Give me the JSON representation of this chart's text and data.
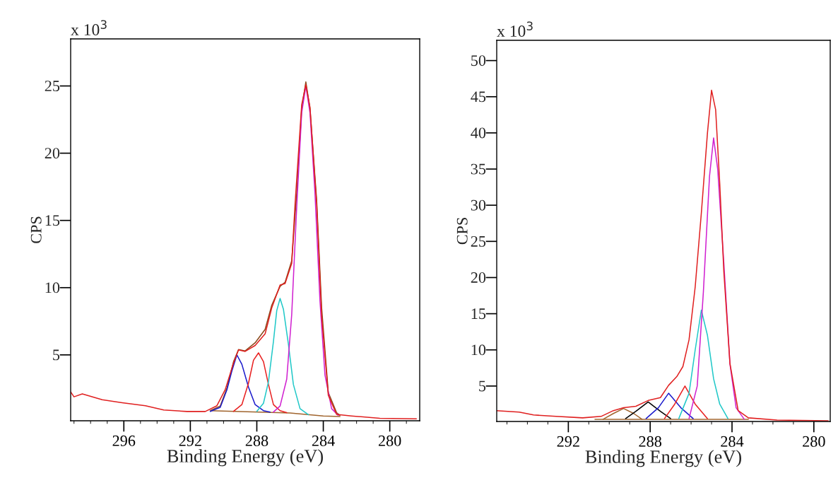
{
  "chart_data": [
    {
      "type": "line",
      "xlabel": "Binding Energy (eV)",
      "ylabel": "CPS",
      "annotations": [
        "x 10$^{3}$"
      ],
      "xlim": [
        299.2,
        278.2
      ],
      "xticks": [
        296,
        292,
        288,
        284,
        280
      ],
      "ylim": [
        0.1,
        28.5
      ],
      "yticks": [
        5,
        10,
        15,
        20,
        25
      ],
      "grid": false,
      "legend": false,
      "series": [
        {
          "color": "#8b4a1c",
          "x": [
            290.8,
            290.2,
            289.8,
            289.4,
            289.1,
            288.7,
            288.1,
            287.5,
            287.1,
            286.6,
            286.3,
            285.9,
            285.6,
            285.3,
            285.05,
            284.8,
            284.4,
            284.1,
            283.7,
            283.2,
            283.0
          ],
          "values": [
            0.85,
            1.2,
            2.5,
            4.5,
            5.4,
            5.3,
            5.9,
            6.9,
            8.7,
            10.1,
            10.4,
            12,
            17,
            23.3,
            25.3,
            23.3,
            16.5,
            8.5,
            2.2,
            0.7,
            0.5
          ]
        },
        {
          "color": "#a0642d",
          "x": [
            290.8,
            286.0,
            284.0,
            283.0
          ],
          "values": [
            0.85,
            0.68,
            0.46,
            0.41
          ]
        },
        {
          "color": "#1a1acc",
          "x": [
            290.8,
            290.2,
            289.8,
            289.5,
            289.2,
            288.9,
            288.5,
            288.1,
            287.6,
            287.2
          ],
          "values": [
            0.8,
            1.1,
            2.4,
            3.8,
            5.0,
            4.3,
            2.6,
            1.3,
            0.85,
            0.75
          ]
        },
        {
          "color": "#e82020",
          "x": [
            289.4,
            288.9,
            288.5,
            288.2,
            287.9,
            287.6,
            287.3,
            287.0,
            286.6,
            286.2
          ],
          "values": [
            0.8,
            1.3,
            2.9,
            4.6,
            5.15,
            4.5,
            2.8,
            1.3,
            0.85,
            0.7
          ]
        },
        {
          "color": "#20c8c8",
          "x": [
            288.0,
            287.6,
            287.3,
            287.0,
            286.8,
            286.6,
            286.4,
            286.1,
            285.8,
            285.4,
            284.9
          ],
          "values": [
            0.8,
            1.4,
            3.0,
            6.0,
            8.3,
            9.2,
            8.4,
            5.8,
            2.8,
            1.0,
            0.55
          ]
        },
        {
          "color": "#d020d0",
          "x": [
            287.0,
            286.6,
            286.2,
            285.9,
            285.6,
            285.3,
            285.05,
            284.8,
            284.5,
            284.2,
            283.9,
            283.5,
            283.1
          ],
          "values": [
            0.75,
            1.2,
            3.2,
            8,
            16,
            23,
            25.0,
            23.0,
            17,
            9,
            3.5,
            1.0,
            0.5
          ]
        },
        {
          "color": "#e02020",
          "x": [
            299.2,
            299.0,
            298.5,
            297.3,
            296.1,
            294.7,
            293.6,
            292.2,
            291.1,
            290.4,
            289.9,
            289.4,
            289.1,
            288.7,
            288.1,
            287.5,
            287.1,
            286.6,
            286.3,
            285.9,
            285.7,
            285.3,
            285.05,
            284.8,
            284.4,
            284.1,
            283.7,
            283.2,
            282.3,
            280.6,
            278.4
          ],
          "values": [
            2.25,
            1.88,
            2.1,
            1.66,
            1.44,
            1.22,
            0.9,
            0.79,
            0.79,
            1.22,
            2.42,
            4.4,
            5.37,
            5.26,
            5.7,
            6.57,
            8.5,
            10.2,
            10.3,
            11.8,
            16.2,
            23.6,
            25.1,
            23.4,
            16.2,
            7.9,
            2.0,
            0.57,
            0.46,
            0.28,
            0.24
          ]
        }
      ]
    },
    {
      "type": "line",
      "xlabel": "Binding Energy (eV)",
      "ylabel": "CPS",
      "annotations": [
        "x 10$^{3}$"
      ],
      "xlim": [
        295.5,
        279.2
      ],
      "xticks": [
        292,
        288,
        284,
        280
      ],
      "ylim": [
        0.1,
        52.8
      ],
      "yticks": [
        5,
        10,
        15,
        20,
        25,
        30,
        35,
        40,
        45,
        50
      ],
      "grid": false,
      "legend": false,
      "series": [
        {
          "color": "#a0642d",
          "x": [
            290.7,
            283.2
          ],
          "values": [
            0.4,
            0.4
          ]
        },
        {
          "color": "#a0642d",
          "x": [
            290.3,
            289.8,
            289.3,
            288.8,
            288.4
          ],
          "values": [
            0.4,
            1.2,
            1.9,
            1.2,
            0.4
          ]
        },
        {
          "color": "#000000",
          "x": [
            289.2,
            288.7,
            288.1,
            287.5,
            287.0
          ],
          "values": [
            0.5,
            1.5,
            2.8,
            1.5,
            0.5
          ]
        },
        {
          "color": "#1a1acc",
          "x": [
            288.2,
            287.6,
            287.1,
            286.5,
            285.9
          ],
          "values": [
            0.5,
            2.0,
            4.0,
            2.0,
            0.5
          ]
        },
        {
          "color": "#e82020",
          "x": [
            287.3,
            286.8,
            286.3,
            285.8,
            285.2
          ],
          "values": [
            0.5,
            2.5,
            5.0,
            2.5,
            0.5
          ]
        },
        {
          "color": "#20c8c8",
          "x": [
            286.6,
            286.1,
            285.8,
            285.5,
            285.2,
            284.9,
            284.6,
            284.2
          ],
          "values": [
            0.5,
            4,
            10,
            15.5,
            12,
            6,
            2.5,
            0.5
          ]
        },
        {
          "color": "#d020d0",
          "x": [
            286.1,
            285.7,
            285.4,
            285.1,
            284.9,
            284.7,
            284.4,
            284.1,
            283.8,
            283.4
          ],
          "values": [
            0.5,
            5,
            18,
            34,
            39.3,
            35,
            22,
            8,
            2,
            0.4
          ]
        },
        {
          "color": "#e02020",
          "x": [
            295.5,
            294.4,
            293.7,
            292.6,
            291.3,
            290.4,
            289.8,
            289.3,
            288.7,
            288.1,
            287.5,
            287.1,
            286.7,
            286.4,
            286.1,
            285.8,
            285.5,
            285.2,
            285.0,
            284.8,
            284.6,
            284.4,
            284.1,
            283.7,
            283.2,
            281.8,
            279.3
          ],
          "values": [
            1.6,
            1.4,
            1.0,
            0.8,
            0.6,
            0.8,
            1.6,
            2.0,
            2.2,
            3.0,
            3.4,
            5.1,
            6.3,
            7.7,
            11.4,
            18.7,
            28.9,
            40,
            45.9,
            43.2,
            33,
            20.8,
            8.1,
            1.6,
            0.6,
            0.3,
            0.2
          ]
        }
      ]
    }
  ]
}
